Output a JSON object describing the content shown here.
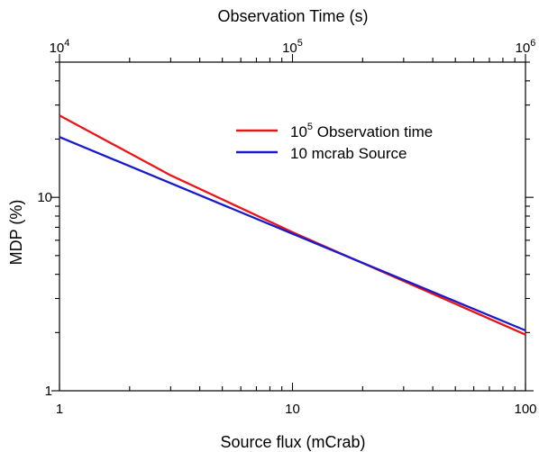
{
  "chart_data": {
    "type": "line",
    "x_axis_bottom": {
      "label": "Source flux (mCrab)",
      "scale": "log",
      "range": [
        1,
        100
      ],
      "tick_labels": [
        "1",
        "10",
        "100"
      ]
    },
    "x_axis_top": {
      "label": "Observation Time (s)",
      "scale": "log",
      "range": [
        10000,
        1000000
      ],
      "tick_labels": [
        {
          "base": "10",
          "exp": "4"
        },
        {
          "base": "10",
          "exp": "5"
        },
        {
          "base": "10",
          "exp": "6"
        }
      ]
    },
    "y_axis": {
      "label": "MDP (%)",
      "scale": "log",
      "range": [
        1,
        50
      ],
      "tick_labels": [
        "1",
        "10"
      ]
    },
    "grid": false,
    "legend": {
      "placement": "upper-right",
      "entries": [
        {
          "base": "10",
          "exp": "5",
          "rest": " Observation time",
          "color": "#e8161b"
        },
        {
          "text": "10 mcrab Source",
          "color": "#1a1ac8"
        }
      ]
    },
    "series": [
      {
        "name": "10^5 Observation time",
        "color": "#e8161b",
        "x": [
          1,
          3,
          10,
          100
        ],
        "y": [
          26.5,
          13.0,
          6.6,
          1.95
        ]
      },
      {
        "name": "10 mcrab Source",
        "color": "#1a1ac8",
        "x": [
          1,
          100
        ],
        "y": [
          20.5,
          2.05
        ]
      }
    ]
  }
}
